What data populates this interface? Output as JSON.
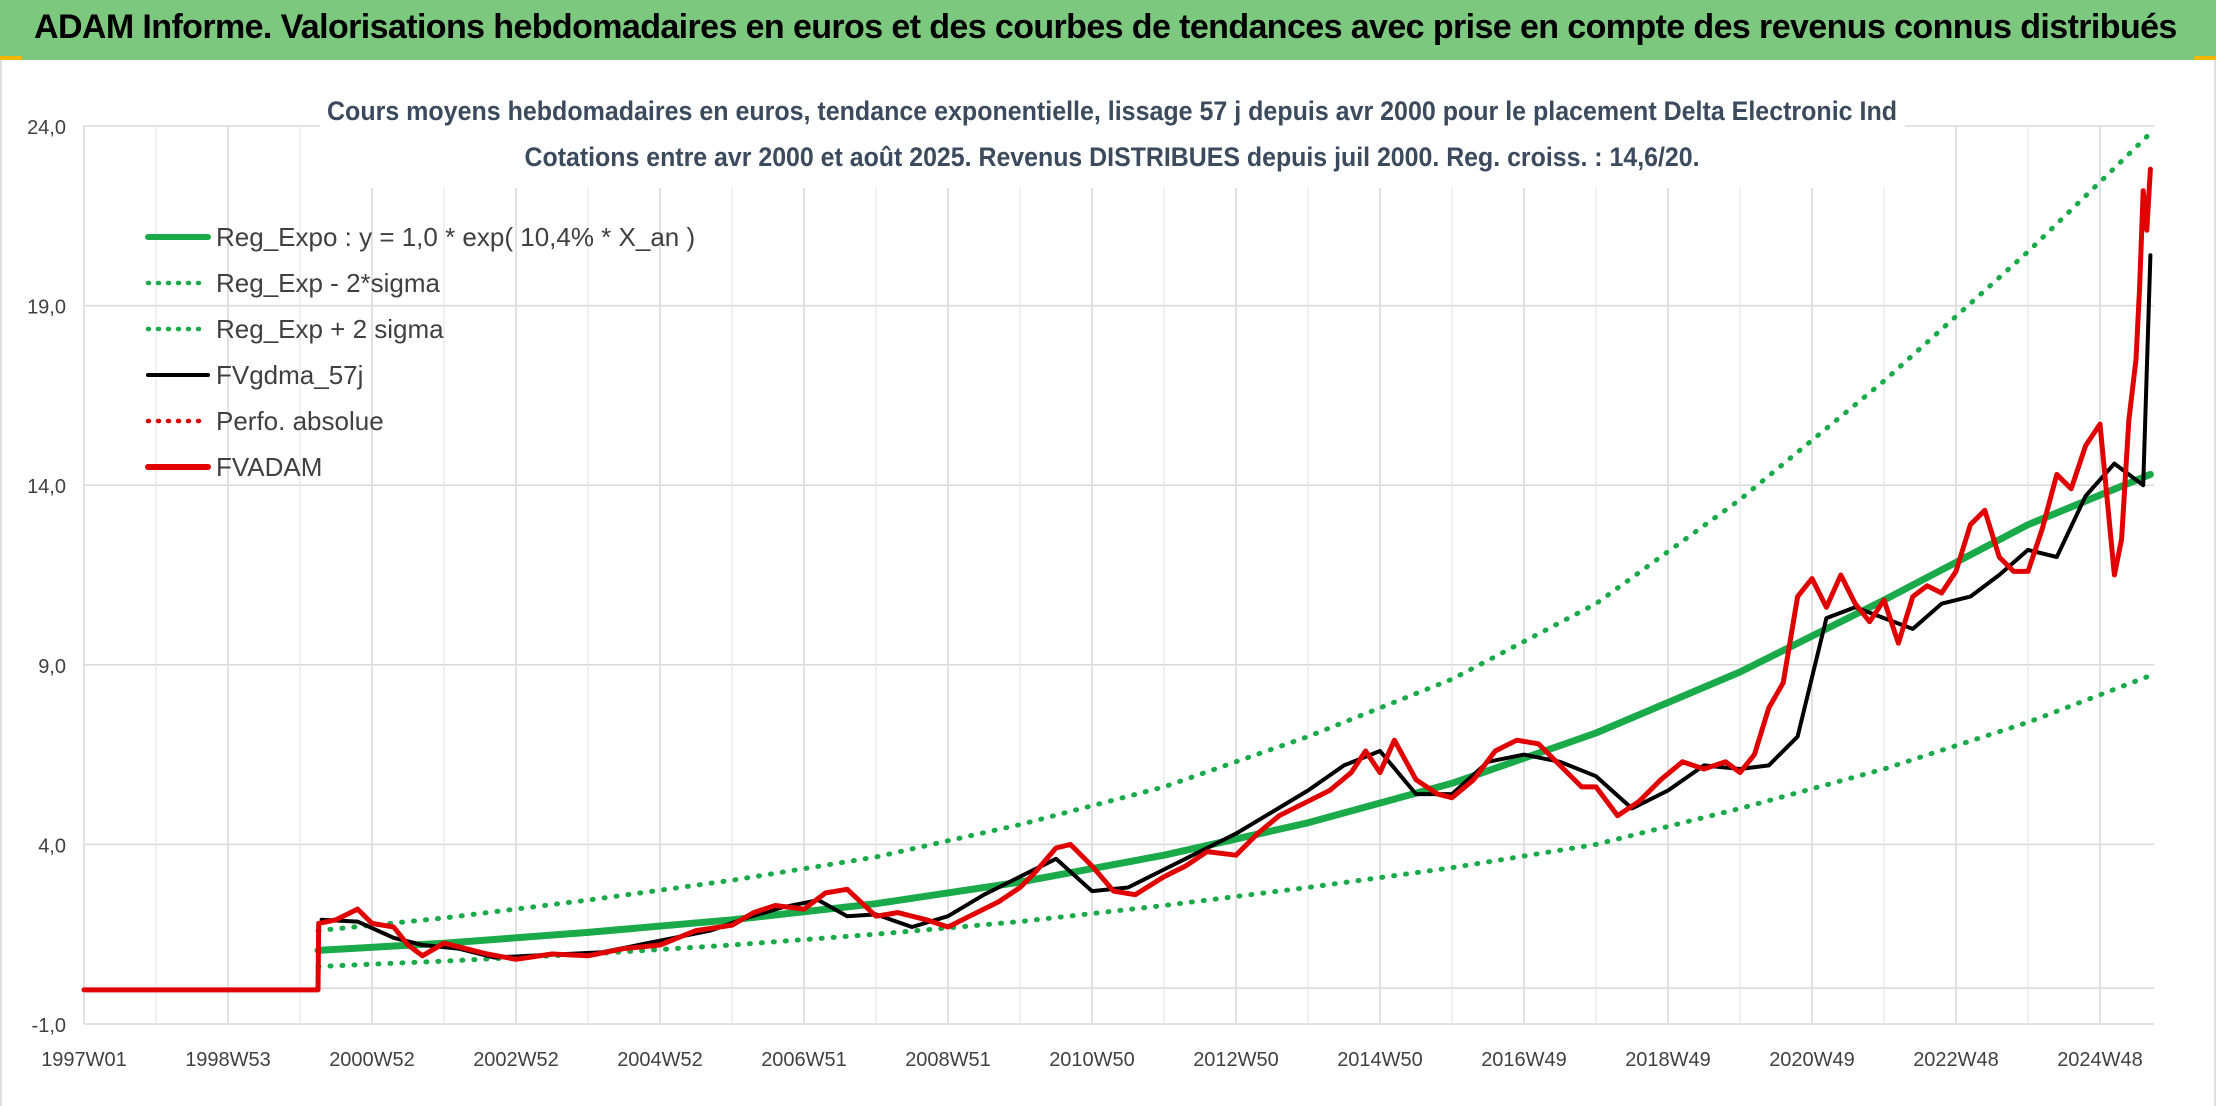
{
  "banner": {
    "title": "ADAM Informe. Valorisations hebdomadaires en euros et des courbes de tendances avec prise en compte des revenus connus distribués",
    "color": "#7dc87f"
  },
  "chart_data": {
    "type": "line",
    "title": "Cours moyens hebdomadaires en euros, tendance exponentielle, lissage 57 j depuis avr 2000 pour le placement Delta Electronic Ind",
    "subtitle": "Cotations entre avr 2000 et août 2025. Revenus DISTRIBUES depuis juil 2000. Reg. croiss. : 14,6/20.",
    "ylim": [
      -1.0,
      24.0
    ],
    "xlim": [
      1997.0,
      2025.75
    ],
    "y_ticks": [
      -1.0,
      4.0,
      9.0,
      14.0,
      19.0,
      24.0
    ],
    "y_tick_labels": [
      "-1,0",
      "4,0",
      "9,0",
      "14,0",
      "19,0",
      "24,0"
    ],
    "x_ticks": [
      1997.0,
      1999.0,
      2001.0,
      2003.0,
      2005.0,
      2007.0,
      2009.0,
      2011.0,
      2013.0,
      2015.0,
      2017.0,
      2019.0,
      2021.0,
      2023.0,
      2025.0
    ],
    "x_tick_labels": [
      "1997W01",
      "1998W53",
      "2000W52",
      "2002W52",
      "2004W52",
      "2006W51",
      "2008W51",
      "2010W50",
      "2012W50",
      "2014W50",
      "2016W49",
      "2018W49",
      "2020W49",
      "2022W48",
      "2024W48"
    ],
    "grid": true,
    "legend_position": "top-left",
    "legend": [
      {
        "label": "Reg_Expo : y = 1,0 * exp( 10,4% *  X_an )",
        "color": "#1aaa4a",
        "style": "solid-thick"
      },
      {
        "label": "Reg_Exp - 2*sigma",
        "color": "#1aaa4a",
        "style": "dotted"
      },
      {
        "label": "Reg_Exp + 2 sigma",
        "color": "#1aaa4a",
        "style": "dotted"
      },
      {
        "label": "FVgdma_57j",
        "color": "#000000",
        "style": "solid"
      },
      {
        "label": "Perfo. absolue",
        "color": "#e00000",
        "style": "dotted"
      },
      {
        "label": "FVADAM",
        "color": "#e00000",
        "style": "solid-thick"
      }
    ],
    "series": [
      {
        "name": "Reg_Expo : y = 1,0 * exp( 10,4% *  X_an )",
        "color": "#1aaa4a",
        "x": [
          2000.25,
          2002.0,
          2004.0,
          2006.0,
          2008.0,
          2010.0,
          2012.0,
          2014.0,
          2016.0,
          2018.0,
          2020.0,
          2022.0,
          2024.0,
          2025.7
        ],
        "y": [
          1.05,
          1.25,
          1.55,
          1.9,
          2.35,
          2.95,
          3.7,
          4.6,
          5.7,
          7.1,
          8.8,
          10.8,
          12.9,
          14.3
        ]
      },
      {
        "name": "Reg_Exp - 2*sigma",
        "color": "#1aaa4a",
        "x": [
          2000.25,
          2002.0,
          2004.0,
          2006.0,
          2008.0,
          2010.0,
          2012.0,
          2014.0,
          2016.0,
          2018.0,
          2020.0,
          2022.0,
          2024.0,
          2025.7
        ],
        "y": [
          0.6,
          0.75,
          0.95,
          1.2,
          1.5,
          1.85,
          2.3,
          2.8,
          3.35,
          4.0,
          5.0,
          6.1,
          7.4,
          8.7
        ]
      },
      {
        "name": "Reg_Exp + 2 sigma",
        "color": "#1aaa4a",
        "x": [
          2000.25,
          2002.0,
          2004.0,
          2006.0,
          2008.0,
          2010.0,
          2012.0,
          2014.0,
          2016.0,
          2018.0,
          2020.0,
          2022.0,
          2024.0,
          2025.7
        ],
        "y": [
          1.6,
          1.95,
          2.45,
          3.0,
          3.65,
          4.55,
          5.6,
          7.0,
          8.6,
          10.7,
          13.6,
          16.9,
          20.5,
          23.8
        ]
      },
      {
        "name": "FVgdma_57j",
        "color": "#000000",
        "x": [
          2000.3,
          2000.8,
          2001.3,
          2001.7,
          2002.2,
          2002.7,
          2003.2,
          2003.7,
          2004.2,
          2004.7,
          2005.2,
          2005.7,
          2006.2,
          2006.7,
          2007.2,
          2007.6,
          2008.0,
          2008.5,
          2009.0,
          2009.5,
          2010.0,
          2010.5,
          2011.0,
          2011.5,
          2012.0,
          2012.5,
          2013.0,
          2013.5,
          2014.0,
          2014.5,
          2015.0,
          2015.5,
          2016.0,
          2016.5,
          2017.0,
          2017.5,
          2018.0,
          2018.5,
          2019.0,
          2019.5,
          2020.0,
          2020.4,
          2020.8,
          2021.2,
          2021.6,
          2022.0,
          2022.4,
          2022.8,
          2023.2,
          2023.6,
          2024.0,
          2024.4,
          2024.8,
          2025.2,
          2025.6,
          2025.7
        ],
        "y": [
          1.9,
          1.85,
          1.4,
          1.2,
          1.1,
          0.85,
          0.9,
          0.95,
          1.0,
          1.2,
          1.4,
          1.6,
          1.95,
          2.25,
          2.45,
          2.0,
          2.05,
          1.7,
          2.0,
          2.6,
          3.1,
          3.6,
          2.7,
          2.8,
          3.3,
          3.8,
          4.3,
          4.9,
          5.5,
          6.2,
          6.6,
          5.4,
          5.4,
          6.3,
          6.5,
          6.3,
          5.9,
          5.0,
          5.5,
          6.2,
          6.1,
          6.2,
          7.0,
          10.3,
          10.6,
          10.3,
          10.0,
          10.7,
          10.9,
          11.5,
          12.2,
          12.0,
          13.7,
          14.6,
          14.0,
          20.4
        ]
      },
      {
        "name": "FVADAM",
        "color": "#e00000",
        "x": [
          1997.0,
          2000.25,
          2000.26,
          2000.5,
          2000.8,
          2001.0,
          2001.3,
          2001.5,
          2001.7,
          2002.0,
          2002.3,
          2002.6,
          2003.0,
          2003.5,
          2004.0,
          2004.5,
          2005.0,
          2005.5,
          2006.0,
          2006.3,
          2006.6,
          2007.0,
          2007.3,
          2007.6,
          2008.0,
          2008.3,
          2008.7,
          2009.0,
          2009.3,
          2009.7,
          2010.0,
          2010.2,
          2010.5,
          2010.7,
          2011.0,
          2011.3,
          2011.6,
          2012.0,
          2012.3,
          2012.6,
          2013.0,
          2013.3,
          2013.6,
          2014.0,
          2014.3,
          2014.6,
          2014.8,
          2015.0,
          2015.2,
          2015.5,
          2015.8,
          2016.0,
          2016.3,
          2016.6,
          2016.9,
          2017.2,
          2017.5,
          2017.8,
          2018.0,
          2018.3,
          2018.6,
          2018.9,
          2019.2,
          2019.5,
          2019.8,
          2020.0,
          2020.2,
          2020.4,
          2020.6,
          2020.8,
          2021.0,
          2021.2,
          2021.4,
          2021.6,
          2021.8,
          2022.0,
          2022.2,
          2022.4,
          2022.6,
          2022.8,
          2023.0,
          2023.2,
          2023.4,
          2023.6,
          2023.8,
          2024.0,
          2024.2,
          2024.4,
          2024.6,
          2024.8,
          2025.0,
          2025.2,
          2025.3,
          2025.4,
          2025.5,
          2025.55,
          2025.6,
          2025.65,
          2025.7
        ],
        "y": [
          -0.05,
          -0.05,
          1.8,
          1.9,
          2.2,
          1.8,
          1.7,
          1.2,
          0.9,
          1.25,
          1.1,
          0.95,
          0.8,
          0.95,
          0.9,
          1.1,
          1.2,
          1.6,
          1.75,
          2.1,
          2.3,
          2.2,
          2.65,
          2.75,
          2.0,
          2.1,
          1.9,
          1.7,
          2.0,
          2.4,
          2.8,
          3.2,
          3.9,
          4.0,
          3.4,
          2.7,
          2.6,
          3.1,
          3.4,
          3.8,
          3.7,
          4.3,
          4.8,
          5.2,
          5.5,
          6.0,
          6.6,
          6.0,
          6.9,
          5.8,
          5.4,
          5.3,
          5.8,
          6.6,
          6.9,
          6.8,
          6.2,
          5.6,
          5.6,
          4.8,
          5.2,
          5.8,
          6.3,
          6.1,
          6.3,
          6.0,
          6.5,
          7.8,
          8.5,
          10.9,
          11.4,
          10.6,
          11.5,
          10.7,
          10.2,
          10.8,
          9.6,
          10.9,
          11.2,
          11.0,
          11.6,
          12.9,
          13.3,
          12.0,
          11.6,
          11.6,
          12.8,
          14.3,
          13.9,
          15.1,
          15.7,
          11.5,
          12.5,
          15.8,
          17.5,
          19.5,
          22.2,
          21.1,
          22.8
        ]
      }
    ]
  }
}
